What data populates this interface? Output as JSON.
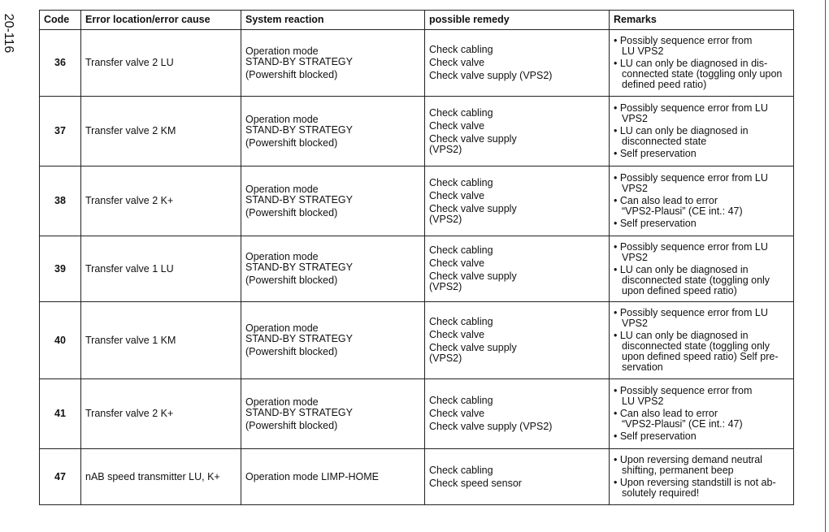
{
  "page_number": "20-116",
  "headers": [
    "Code",
    "Error location/error cause",
    "System reaction",
    "possible remedy",
    "Remarks"
  ],
  "rows": [
    {
      "code": "36",
      "location": "Transfer valve 2 LU",
      "reaction": [
        "Operation mode\nSTAND-BY STRATEGY",
        "(Powershift blocked)"
      ],
      "remedy": [
        "Check cabling",
        "Check valve",
        "Check valve supply (VPS2)"
      ],
      "remarks": [
        "• Possibly sequence error from\nLU VPS2",
        "• LU can only be diagnosed in dis-\nconnected state (toggling only upon\ndefined peed ratio)"
      ]
    },
    {
      "code": "37",
      "location": "Transfer valve 2 KM",
      "reaction": [
        "Operation mode\nSTAND-BY STRATEGY",
        "(Powershift blocked)"
      ],
      "remedy": [
        "Check cabling",
        "Check valve",
        "Check valve supply\n(VPS2)"
      ],
      "remarks": [
        "• Possibly sequence error from LU\nVPS2",
        "• LU can only be diagnosed in\ndisconnected state",
        "• Self preservation"
      ]
    },
    {
      "code": "38",
      "location": "Transfer valve 2 K+",
      "reaction": [
        "Operation mode\nSTAND-BY STRATEGY",
        "(Powershift blocked)"
      ],
      "remedy": [
        "Check cabling",
        "Check valve",
        "Check valve supply\n(VPS2)"
      ],
      "remarks": [
        "• Possibly sequence error from LU\nVPS2",
        "• Can also lead to error\n“VPS2-Plausi” (CE int.: 47)",
        "• Self preservation"
      ]
    },
    {
      "code": "39",
      "location": "Transfer valve 1 LU",
      "reaction": [
        "Operation mode\nSTAND-BY STRATEGY",
        "(Powershift blocked)"
      ],
      "remedy": [
        "Check cabling",
        "Check valve",
        "Check valve supply\n(VPS2)"
      ],
      "remarks": [
        "• Possibly sequence error from LU\nVPS2",
        "• LU can only be diagnosed in\ndisconnected state (toggling only\nupon defined speed ratio)"
      ]
    },
    {
      "code": "40",
      "location": "Transfer valve 1 KM",
      "reaction": [
        "Operation mode\nSTAND-BY STRATEGY",
        "(Powershift blocked)"
      ],
      "remedy": [
        "Check cabling",
        "Check valve",
        "Check valve supply\n(VPS2)"
      ],
      "remarks": [
        "• Possibly sequence error from LU\nVPS2",
        "• LU can only be diagnosed in\ndisconnected state (toggling only\nupon defined speed ratio) Self pre-\nservation"
      ]
    },
    {
      "code": "41",
      "location": "Transfer valve 2 K+",
      "reaction": [
        "Operation mode\nSTAND-BY STRATEGY",
        "(Powershift blocked)"
      ],
      "remedy": [
        "Check cabling",
        "Check valve",
        "Check valve supply (VPS2)"
      ],
      "remarks": [
        "• Possibly sequence error from\nLU VPS2",
        "• Can also lead to error\n“VPS2-Plausi” (CE int.: 47)",
        "• Self preservation"
      ]
    },
    {
      "code": "47",
      "location": "nAB speed transmitter LU, K+",
      "reaction": [
        "Operation mode LIMP-HOME"
      ],
      "remedy": [
        "Check cabling",
        "Check speed sensor"
      ],
      "remarks": [
        "• Upon reversing demand neutral\nshifting, permanent beep",
        "• Upon reversing standstill is not ab-\nsolutely required!"
      ]
    }
  ]
}
